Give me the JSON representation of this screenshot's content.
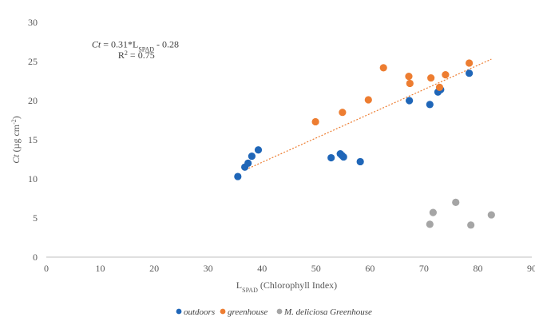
{
  "chart_data": {
    "type": "scatter",
    "xlim": [
      0,
      90
    ],
    "ylim": [
      0,
      30
    ],
    "x_ticks": [
      0,
      10,
      20,
      30,
      40,
      50,
      60,
      70,
      80,
      90
    ],
    "y_ticks": [
      0,
      5,
      10,
      15,
      20,
      25,
      30
    ],
    "xlabel": {
      "main": "L",
      "sub": "SPAD",
      "rest": " (Chlorophyll  Index)"
    },
    "ylabel": {
      "var": "Ct",
      "rest": " (µg cm",
      "sup": "-2",
      "end": ")"
    },
    "grid": false,
    "legend_position": "bottom",
    "annotation": {
      "line1_var": "Ct",
      "line1_mid": " = 0.31*L",
      "line1_sub": "SPAD",
      "line1_end": "  - 0.28",
      "line2_main": "R",
      "line2_sup": "2",
      "line2_end": " = 0.75"
    },
    "trendline": {
      "x": [
        37.5,
        82.5
      ],
      "slope": 0.31,
      "intercept": -0.28,
      "color": "#ED7D31"
    },
    "series": [
      {
        "name": "outdoors",
        "color": "#1F66B8",
        "points": [
          [
            35.5,
            10.3
          ],
          [
            36.8,
            11.5
          ],
          [
            37.4,
            12.0
          ],
          [
            38.1,
            12.9
          ],
          [
            39.3,
            13.7
          ],
          [
            52.8,
            12.7
          ],
          [
            54.5,
            13.2
          ],
          [
            54.8,
            13.0
          ],
          [
            55.1,
            12.8
          ],
          [
            58.2,
            12.2
          ],
          [
            67.3,
            20.0
          ],
          [
            71.1,
            19.5
          ],
          [
            72.6,
            21.1
          ],
          [
            73.1,
            21.4
          ],
          [
            78.4,
            23.5
          ]
        ]
      },
      {
        "name": "greenhouse",
        "color": "#ED7D31",
        "points": [
          [
            49.9,
            17.3
          ],
          [
            54.9,
            18.5
          ],
          [
            59.7,
            20.1
          ],
          [
            62.5,
            24.2
          ],
          [
            67.2,
            23.1
          ],
          [
            67.4,
            22.2
          ],
          [
            71.3,
            22.9
          ],
          [
            72.9,
            21.7
          ],
          [
            74.0,
            23.3
          ],
          [
            78.4,
            24.8
          ]
        ]
      },
      {
        "name": "M. deliciosa Greenhouse",
        "color": "#A5A5A5",
        "points": [
          [
            71.1,
            4.2
          ],
          [
            71.7,
            5.7
          ],
          [
            75.9,
            7.0
          ],
          [
            78.7,
            4.1
          ],
          [
            82.5,
            5.4
          ]
        ]
      }
    ]
  }
}
